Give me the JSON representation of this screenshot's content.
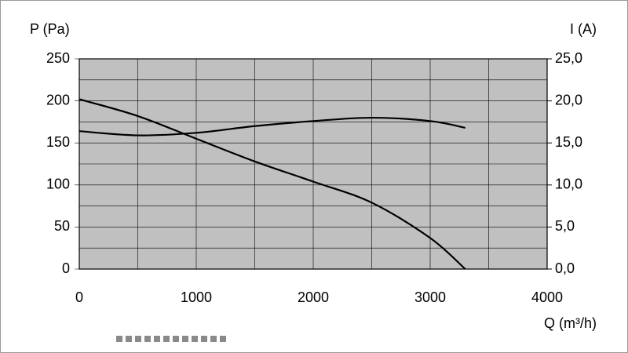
{
  "chart_data": {
    "type": "line",
    "y_label": "P (Pa)",
    "y2_label": "I (A)",
    "x_label": "Q (m³/h)",
    "x": [
      0,
      500,
      1000,
      1500,
      2000,
      2500,
      3000,
      3300
    ],
    "series": [
      {
        "color": "#000000",
        "values": [
          202,
          182,
          155,
          128,
          104,
          79,
          37,
          0
        ]
      },
      {
        "color": "#000000",
        "axis": "y2",
        "values": [
          16.4,
          15.9,
          16.2,
          17.0,
          17.6,
          18.0,
          17.6,
          16.8
        ]
      }
    ],
    "xlim": [
      0,
      4000
    ],
    "xticks": [
      0,
      1000,
      2000,
      3000,
      4000
    ],
    "ylim": [
      0,
      250
    ],
    "yticks": [
      0,
      50,
      100,
      150,
      200,
      250
    ],
    "y2lim": [
      0,
      25
    ],
    "y2ticks": [
      {
        "value": 0,
        "label": "0,0"
      },
      {
        "value": 5,
        "label": "5,0"
      },
      {
        "value": 10,
        "label": "10,0"
      },
      {
        "value": 15,
        "label": "15,0"
      },
      {
        "value": 20,
        "label": "20,0"
      },
      {
        "value": 25,
        "label": "25,0"
      }
    ],
    "grid": true,
    "plot_background": "#c0c0c0"
  }
}
